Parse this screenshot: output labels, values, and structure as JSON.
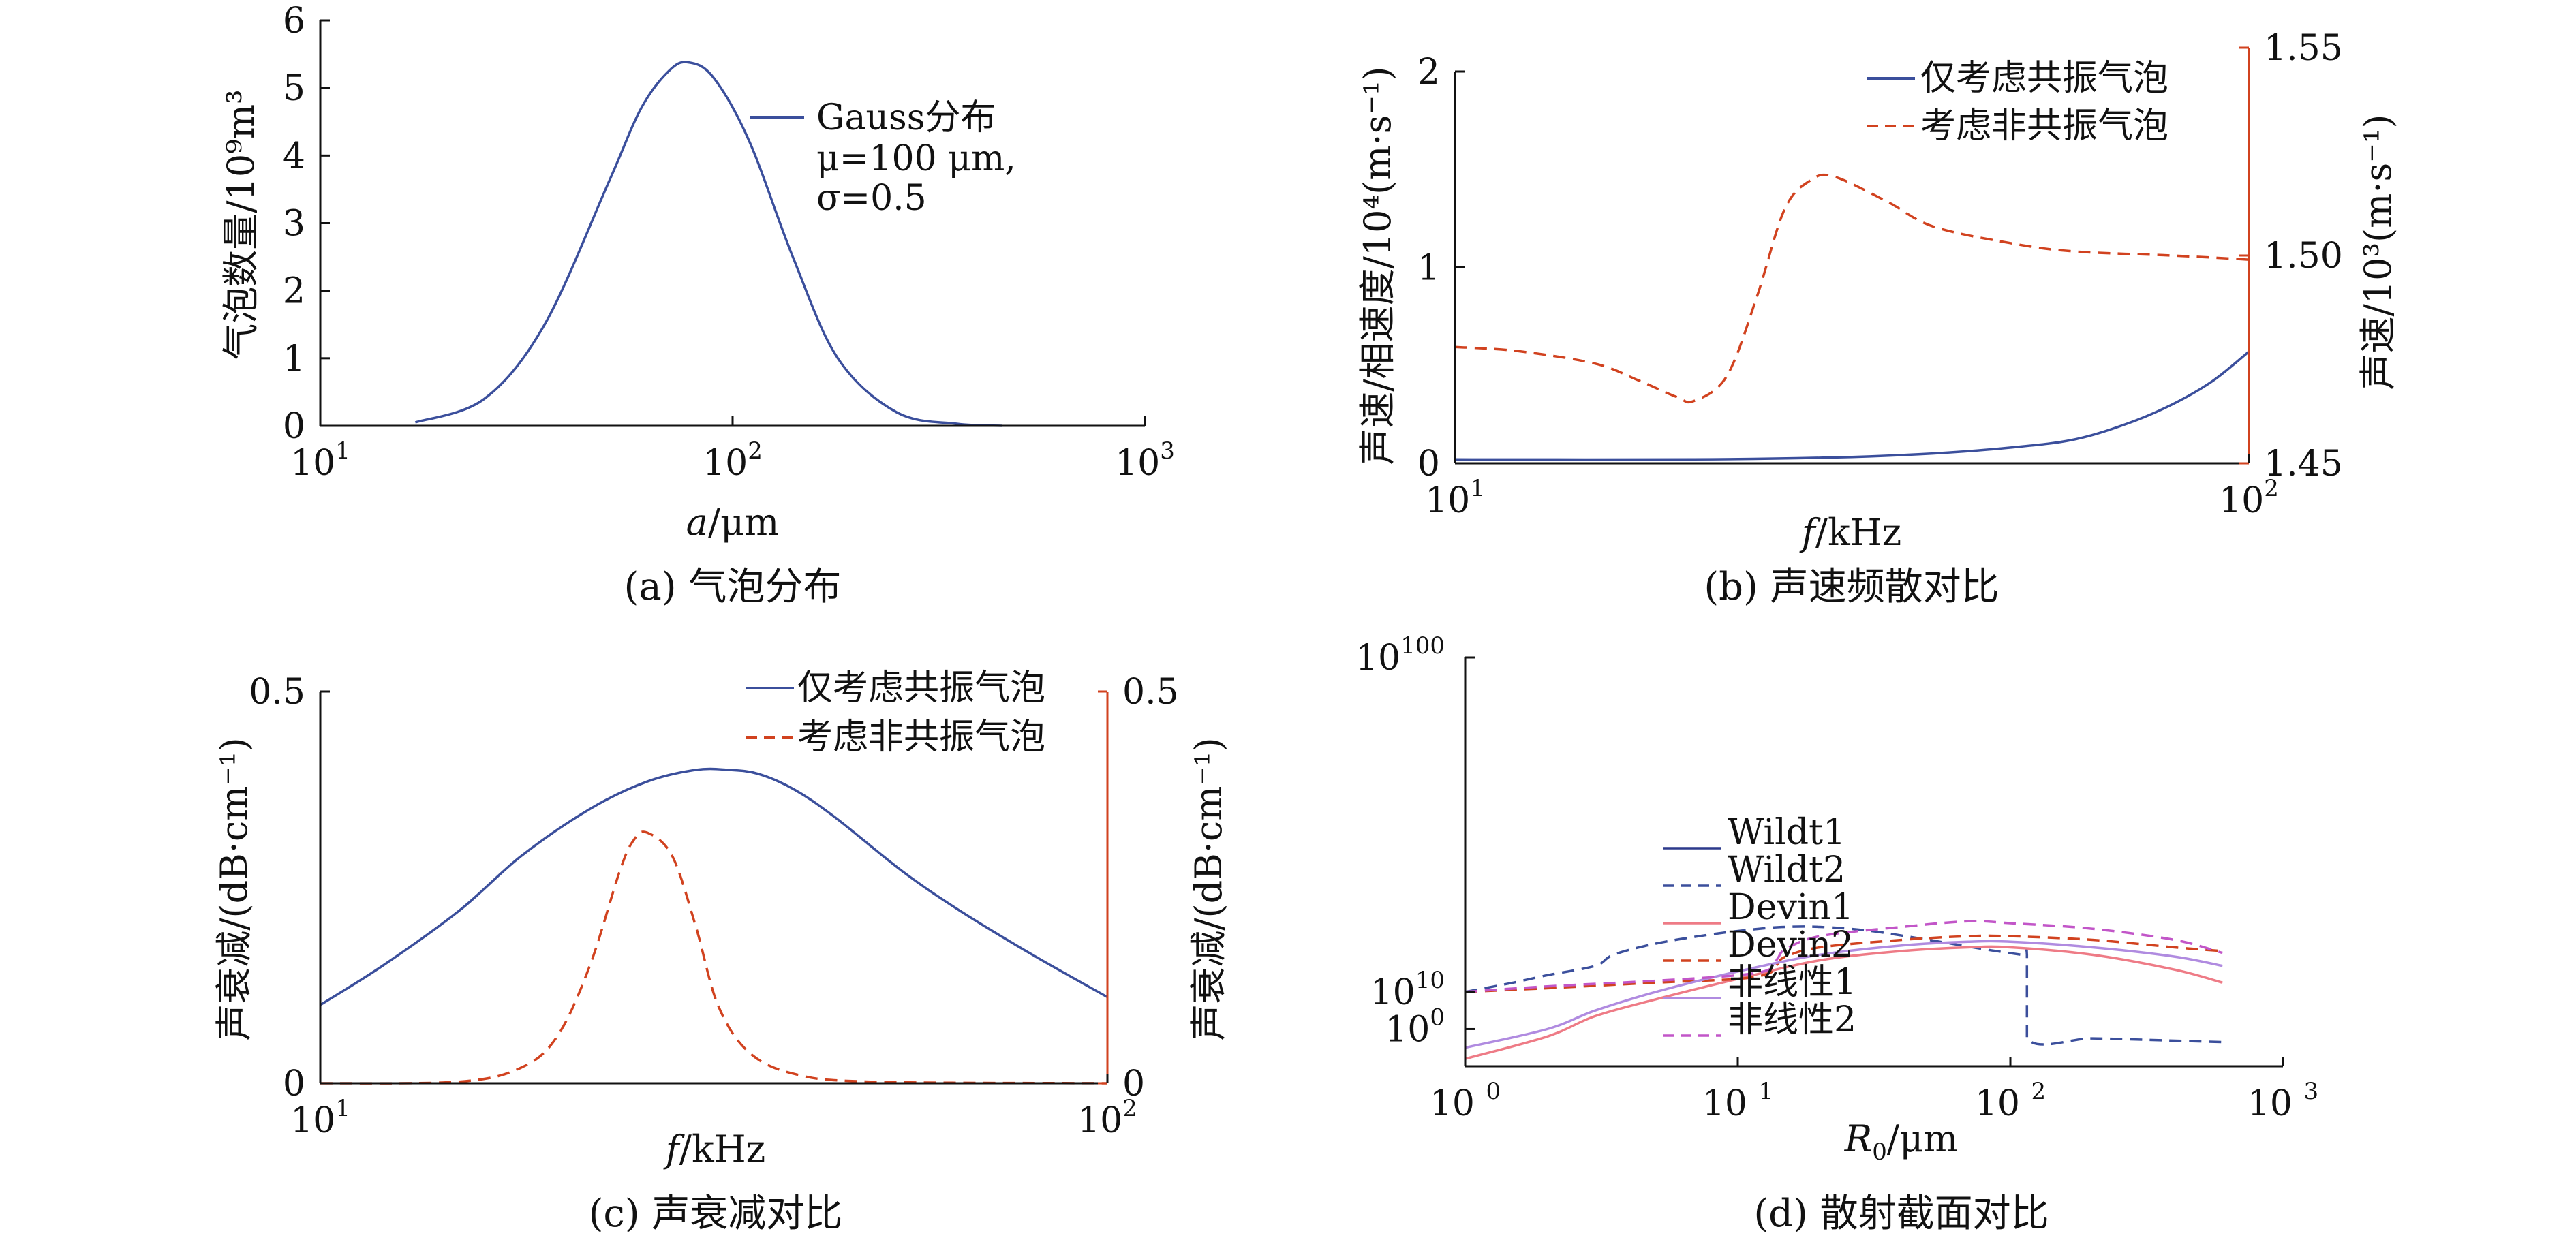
{
  "colors": {
    "blue": "#3b4f9c",
    "red": "#d1421f",
    "pink": "#ee7b86",
    "violet": "#b08be0",
    "magenta": "#c256c8",
    "navy": "#2d3a8c"
  },
  "panels": {
    "a": {
      "caption": "(a) 气泡分布",
      "ylabel": "气泡数量/10⁹m³",
      "xlabel_italic": "a",
      "xlabel_rest": "/μm",
      "legend": [
        "Gauss分布",
        "μ=100 μm,",
        "σ=0.5"
      ]
    },
    "b": {
      "caption": "(b) 声速频散对比",
      "ylabel_left": "声速/相速度/10⁴(m·s⁻¹)",
      "ylabel_right": "声速/10³(m·s⁻¹)",
      "xlabel_italic": "f",
      "xlabel_rest": "/kHz",
      "legend": [
        "仅考虑共振气泡",
        "考虑非共振气泡"
      ]
    },
    "c": {
      "caption": "(c) 声衰减对比",
      "ylabel_left": "声衰减/(dB·cm⁻¹)",
      "ylabel_right": "声衰减/(dB·cm⁻¹)",
      "xlabel_italic": "f",
      "xlabel_rest": "/kHz",
      "legend": [
        "仅考虑共振气泡",
        "考虑非共振气泡"
      ]
    },
    "d": {
      "caption": "(d) 散射截面对比",
      "xlabel_italic": "R",
      "xlabel_sub": "0",
      "xlabel_rest": "/μm",
      "legend": [
        "Wildt1",
        "Wildt2",
        "Devin1",
        "Devin2",
        "非线性1",
        "非线性2"
      ]
    }
  },
  "chart_data": [
    {
      "id": "a",
      "type": "line",
      "x_scale": "log",
      "xlim": [
        10,
        1000
      ],
      "ylim": [
        0,
        6
      ],
      "yticks": [
        0,
        1,
        2,
        3,
        4,
        5,
        6
      ],
      "xticks": [
        10,
        100,
        1000
      ],
      "series": [
        {
          "name": "Gauss分布",
          "style": "solid",
          "color": "blue",
          "x": [
            17,
            25,
            35,
            50,
            60,
            70,
            78,
            90,
            110,
            140,
            180,
            250,
            350,
            450
          ],
          "y": [
            0.05,
            0.4,
            1.5,
            3.6,
            4.7,
            5.25,
            5.38,
            5.15,
            4.2,
            2.5,
            1.0,
            0.2,
            0.03,
            0.0
          ]
        }
      ]
    },
    {
      "id": "b",
      "type": "line",
      "x_scale": "log",
      "xlim": [
        10,
        100
      ],
      "ylim_left": [
        0,
        2
      ],
      "yticks_left": [
        0,
        1,
        2
      ],
      "ylim_right": [
        1.45,
        1.55
      ],
      "yticks_right": [
        1.45,
        1.5,
        1.55
      ],
      "xticks": [
        10,
        100
      ],
      "series": [
        {
          "name": "仅考虑共振气泡",
          "axis": "left",
          "style": "solid",
          "color": "blue",
          "x": [
            10,
            20,
            30,
            40,
            50,
            60,
            70,
            80,
            90,
            100
          ],
          "y": [
            0.02,
            0.02,
            0.03,
            0.05,
            0.08,
            0.12,
            0.2,
            0.3,
            0.42,
            0.57
          ]
        },
        {
          "name": "考虑非共振气泡",
          "axis": "right",
          "style": "dashed",
          "color": "red",
          "x": [
            10,
            12,
            15,
            17,
            19,
            20,
            22,
            24,
            26,
            28,
            30,
            35,
            40,
            50,
            60,
            80,
            100
          ],
          "y": [
            1.478,
            1.477,
            1.474,
            1.47,
            1.466,
            1.465,
            1.471,
            1.49,
            1.511,
            1.518,
            1.519,
            1.513,
            1.507,
            1.503,
            1.501,
            1.5,
            1.499
          ]
        }
      ]
    },
    {
      "id": "c",
      "type": "line",
      "x_scale": "log",
      "xlim": [
        10,
        100
      ],
      "ylim": [
        0,
        0.5
      ],
      "yticks": [
        0,
        0.5
      ],
      "yticks_right": [
        0,
        0.5
      ],
      "xticks": [
        10,
        100
      ],
      "series": [
        {
          "name": "仅考虑共振气泡",
          "style": "solid",
          "color": "blue",
          "x": [
            10,
            12,
            15,
            18,
            22,
            26,
            30,
            33,
            36,
            40,
            45,
            55,
            65,
            80,
            100
          ],
          "y": [
            0.1,
            0.15,
            0.22,
            0.29,
            0.35,
            0.385,
            0.4,
            0.4,
            0.395,
            0.375,
            0.34,
            0.27,
            0.22,
            0.165,
            0.11
          ]
        },
        {
          "name": "考虑非共振气泡",
          "style": "dashed",
          "color": "red",
          "x": [
            10,
            15,
            18,
            20,
            22,
            24,
            25,
            26,
            28,
            30,
            32,
            35,
            40,
            50,
            100
          ],
          "y": [
            0.0,
            0.002,
            0.02,
            0.06,
            0.15,
            0.27,
            0.31,
            0.32,
            0.29,
            0.2,
            0.1,
            0.04,
            0.012,
            0.002,
            0.0
          ]
        }
      ]
    },
    {
      "id": "d",
      "type": "line",
      "x_scale": "log",
      "y_scale": "log",
      "xlim": [
        1,
        1000
      ],
      "ylim_exp": [
        -10,
        100
      ],
      "yticks_exp": [
        0,
        10,
        100
      ],
      "xticks": [
        1,
        10,
        100,
        1000
      ],
      "series": [
        {
          "name": "Wildt1",
          "style": "solid",
          "color": "navy",
          "x": [],
          "y_exp": []
        },
        {
          "name": "Wildt2",
          "style": "dashed",
          "color": "blue",
          "x": [
            1,
            1.5,
            2,
            3,
            3.5,
            5,
            8,
            12,
            15,
            20,
            30,
            50,
            80,
            110,
            115,
            115,
            200,
            350,
            600
          ],
          "y_exp": [
            10.0,
            12.5,
            14.5,
            17.0,
            20.0,
            23.0,
            25.5,
            27.0,
            27.5,
            27.5,
            26.5,
            24.0,
            21.5,
            20.0,
            20.0,
            -2.5,
            -2.5,
            -3.0,
            -3.5
          ]
        },
        {
          "name": "Devin1",
          "style": "solid",
          "color": "pink",
          "x": [
            1,
            2,
            3,
            5,
            10,
            20,
            40,
            70,
            100,
            200,
            400,
            600
          ],
          "y_exp": [
            -8.0,
            -2.0,
            3.5,
            8.0,
            13.5,
            18.5,
            21.0,
            22.0,
            22.0,
            20.0,
            16.0,
            12.5
          ]
        },
        {
          "name": "Devin2",
          "style": "dashed",
          "color": "red",
          "x": [
            1,
            2,
            5,
            10,
            13,
            14,
            15,
            20,
            40,
            70,
            100,
            200,
            400,
            600
          ],
          "y_exp": [
            10.0,
            11.0,
            12.5,
            13.5,
            15.0,
            17.5,
            19.5,
            22.0,
            24.0,
            25.0,
            25.0,
            24.0,
            22.0,
            21.0
          ]
        },
        {
          "name": "非线性1",
          "style": "solid",
          "color": "violet",
          "x": [
            1,
            2,
            3,
            5,
            10,
            20,
            40,
            70,
            100,
            200,
            400,
            600
          ],
          "y_exp": [
            -5.0,
            0.0,
            5.0,
            10.0,
            15.5,
            20.0,
            22.5,
            23.5,
            23.5,
            22.0,
            19.5,
            17.0
          ]
        },
        {
          "name": "非线性2",
          "style": "dashed",
          "color": "magenta",
          "x": [
            1,
            2,
            5,
            10,
            13,
            14,
            15,
            20,
            40,
            70,
            100,
            200,
            400,
            600
          ],
          "y_exp": [
            10.0,
            11.5,
            13.0,
            14.5,
            16.0,
            19.0,
            21.5,
            25.0,
            27.5,
            29.0,
            28.5,
            27.0,
            24.0,
            20.5
          ]
        }
      ]
    }
  ]
}
